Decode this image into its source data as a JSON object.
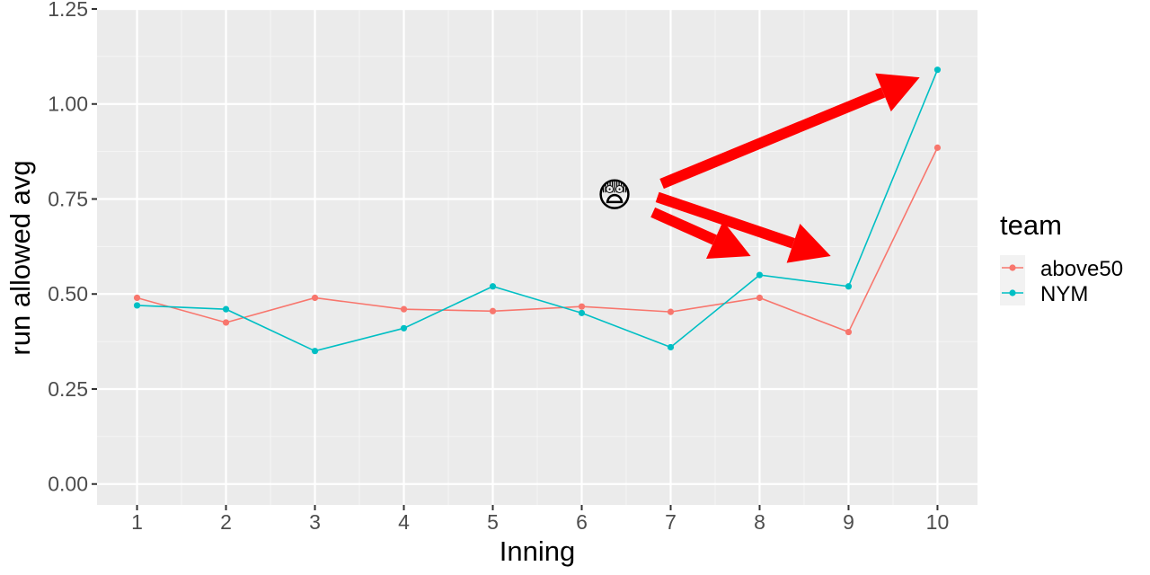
{
  "chart_data": {
    "type": "line",
    "title": "",
    "xlabel": "Inning",
    "ylabel": "run allowed avg",
    "categories": [
      "1",
      "2",
      "3",
      "4",
      "5",
      "6",
      "7",
      "8",
      "9",
      "10"
    ],
    "x": [
      1,
      2,
      3,
      4,
      5,
      6,
      7,
      8,
      9,
      10
    ],
    "xlim": [
      0.55,
      10.45
    ],
    "ylim": [
      -0.055,
      1.25
    ],
    "yticks": [
      0.0,
      0.25,
      0.5,
      0.75,
      1.0,
      1.25
    ],
    "ytick_labels": [
      "0.00",
      "0.25",
      "0.50",
      "0.75",
      "1.00",
      "1.25"
    ],
    "grid": true,
    "legend": {
      "title": "team",
      "position": "right"
    },
    "series": [
      {
        "name": "above50",
        "color": "#F8766D",
        "values": [
          0.49,
          0.425,
          0.49,
          0.46,
          0.455,
          0.467,
          0.453,
          0.49,
          0.4,
          0.885
        ]
      },
      {
        "name": "NYM",
        "color": "#00BFC4",
        "values": [
          0.47,
          0.46,
          0.35,
          0.41,
          0.52,
          0.45,
          0.36,
          0.55,
          0.52,
          1.09
        ]
      }
    ],
    "annotations": {
      "emoji": "😨",
      "arrow_color": "#FF0000",
      "arrows": [
        {
          "from": [
            6.9,
            0.79
          ],
          "to": [
            9.8,
            1.07
          ]
        },
        {
          "from": [
            6.85,
            0.755
          ],
          "to": [
            8.8,
            0.6
          ]
        },
        {
          "from": [
            6.8,
            0.715
          ],
          "to": [
            7.9,
            0.6
          ]
        }
      ]
    }
  }
}
